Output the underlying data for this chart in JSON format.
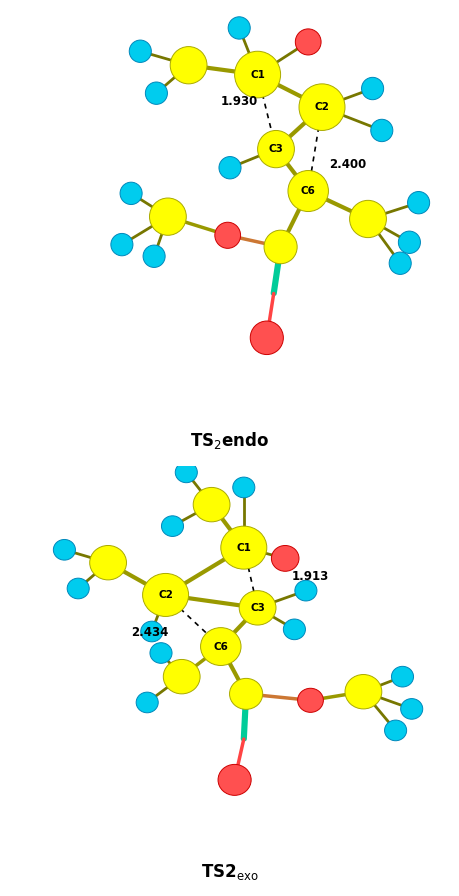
{
  "figure_width": 4.6,
  "figure_height": 8.96,
  "dpi": 100,
  "background_color": "#ffffff",
  "Cy": "#ffff00",
  "Ch": "#00ccee",
  "Co": "#ff5050",
  "Ct": "#00cc99",
  "edge_c": "#aaaa00",
  "edge_h": "#0088bb",
  "edge_o": "#cc0000",
  "top_label": "TS$_2$endo",
  "bottom_label": "TS2$_{\\mathrm{exo}}$",
  "top": {
    "dist1_label": "1.930",
    "dist2_label": "2.400"
  },
  "bottom": {
    "dist1_label": "1.913",
    "dist2_label": "2.434"
  }
}
